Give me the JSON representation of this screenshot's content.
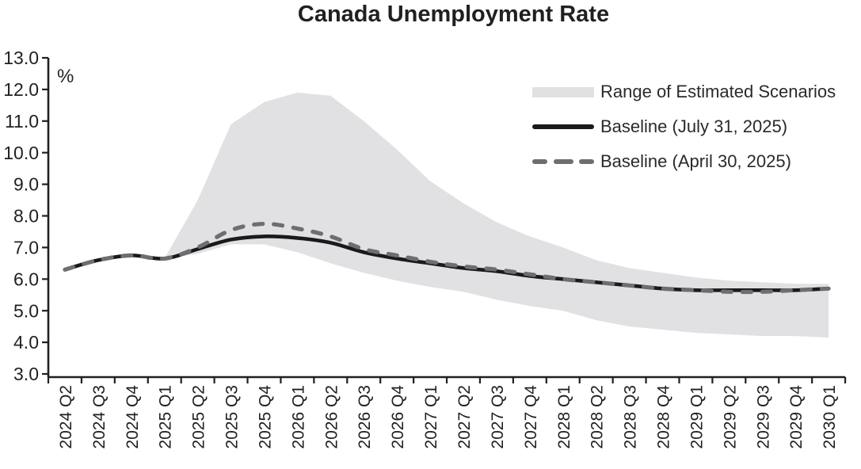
{
  "title": "Canada Unemployment Rate",
  "y_axis_unit": "%",
  "legend": {
    "band_label": "Range of Estimated Scenarios",
    "solid_label": "Baseline (July 31, 2025)",
    "dashed_label": "Baseline (April 30, 2025)"
  },
  "colors": {
    "band": "#e1e1e3",
    "baseline_july": "#1a1a1a",
    "baseline_april": "#6d6e71",
    "axis": "#231f20",
    "text": "#231f20"
  },
  "chart_data": {
    "type": "line",
    "title": "Canada Unemployment Rate",
    "xlabel": "",
    "ylabel": "%",
    "ylim": [
      3.0,
      13.0
    ],
    "grid": false,
    "legend_position": "upper right",
    "yticks": [
      "13.0",
      "12.0",
      "11.0",
      "10.0",
      "9.0",
      "8.0",
      "7.0",
      "6.0",
      "5.0",
      "4.0",
      "3.0"
    ],
    "ytick_values": [
      13.0,
      12.0,
      11.0,
      10.0,
      9.0,
      8.0,
      7.0,
      6.0,
      5.0,
      4.0,
      3.0
    ],
    "categories": [
      "2024 Q2",
      "2024 Q3",
      "2024 Q4",
      "2025 Q1",
      "2025 Q2",
      "2025 Q3",
      "2025 Q4",
      "2026 Q1",
      "2026 Q2",
      "2026 Q3",
      "2026 Q4",
      "2027 Q1",
      "2027 Q2",
      "2027 Q3",
      "2027 Q4",
      "2028 Q1",
      "2028 Q2",
      "2028 Q3",
      "2028 Q4",
      "2029 Q1",
      "2029 Q2",
      "2029 Q3",
      "2029 Q4",
      "2030 Q1"
    ],
    "series": [
      {
        "name": "Baseline (July 31, 2025)",
        "style": "solid",
        "color": "#1a1a1a",
        "values": [
          6.3,
          6.6,
          6.75,
          6.65,
          6.95,
          7.25,
          7.35,
          7.3,
          7.15,
          6.85,
          6.65,
          6.5,
          6.35,
          6.25,
          6.1,
          6.0,
          5.9,
          5.8,
          5.7,
          5.65,
          5.65,
          5.65,
          5.65,
          5.7
        ]
      },
      {
        "name": "Baseline (April 30, 2025)",
        "style": "dashed",
        "color": "#6d6e71",
        "values": [
          6.3,
          6.6,
          6.75,
          6.65,
          7.0,
          7.55,
          7.75,
          7.6,
          7.35,
          6.95,
          6.75,
          6.55,
          6.4,
          6.3,
          6.15,
          6.0,
          5.9,
          5.8,
          5.7,
          5.65,
          5.6,
          5.6,
          5.65,
          5.7
        ]
      }
    ],
    "band": {
      "name": "Range of Estimated Scenarios",
      "color": "#e1e1e3",
      "start_index": 3,
      "upper": [
        6.65,
        8.5,
        10.9,
        11.6,
        11.9,
        11.8,
        11.0,
        10.1,
        9.1,
        8.4,
        7.8,
        7.35,
        7.0,
        6.6,
        6.35,
        6.2,
        6.05,
        5.95,
        5.9,
        5.85,
        5.85
      ],
      "lower": [
        6.65,
        6.8,
        7.1,
        7.1,
        6.85,
        6.5,
        6.2,
        5.95,
        5.75,
        5.6,
        5.35,
        5.15,
        5.0,
        4.7,
        4.5,
        4.4,
        4.3,
        4.25,
        4.2,
        4.2,
        4.15
      ]
    }
  }
}
